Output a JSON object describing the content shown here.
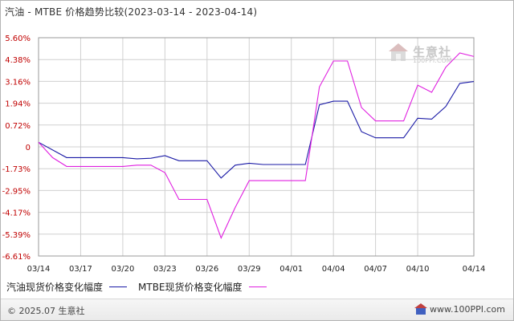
{
  "title": "汽油 - MTBE 价格趋势比较(2023-03-14 - 2023-04-14)",
  "watermark": {
    "text": "生意社",
    "sub": "100PPI.COM"
  },
  "footer": {
    "copyright": "© 2025.07 生意社",
    "url": "www.100PPI.com"
  },
  "colors": {
    "series1": "#1a1aa6",
    "series2": "#e020e0",
    "grid": "#d0d0d0",
    "tick_label": "#c00000"
  },
  "chart_data": {
    "type": "line",
    "title": "汽油 - MTBE 价格趋势比较(2023-03-14 - 2023-04-14)",
    "x_ticks": [
      "03/14",
      "03/17",
      "03/20",
      "03/23",
      "03/26",
      "03/29",
      "04/01",
      "04/04",
      "04/07",
      "04/10",
      "04/14"
    ],
    "y_ticks": [
      "5.60%",
      "4.38%",
      "3.16%",
      "1.94%",
      "0.72%",
      "0",
      "-1.73%",
      "-2.95%",
      "-4.17%",
      "-5.39%",
      "-6.61%"
    ],
    "ylim": [
      -6.61,
      5.6
    ],
    "grid": true,
    "legend_position": "bottom-left",
    "series": [
      {
        "name": "汽油现货价格变化幅度",
        "color": "#1a1aa6",
        "points": [
          [
            "03/14",
            0.15
          ],
          [
            "03/16",
            -0.85
          ],
          [
            "03/17",
            -0.85
          ],
          [
            "03/20",
            -0.85
          ],
          [
            "03/21",
            -0.95
          ],
          [
            "03/22",
            -0.9
          ],
          [
            "03/23",
            -0.7
          ],
          [
            "03/24",
            -1.1
          ],
          [
            "03/26",
            -1.1
          ],
          [
            "03/27",
            -2.25
          ],
          [
            "03/28",
            -1.45
          ],
          [
            "03/29",
            -1.3
          ],
          [
            "03/30",
            -1.4
          ],
          [
            "04/01",
            -1.4
          ],
          [
            "04/02",
            -1.4
          ],
          [
            "04/03",
            1.85
          ],
          [
            "04/04",
            2.05
          ],
          [
            "04/05",
            2.05
          ],
          [
            "04/06",
            0.5
          ],
          [
            "04/07",
            0.3
          ],
          [
            "04/09",
            0.3
          ],
          [
            "04/10",
            1.1
          ],
          [
            "04/11",
            1.05
          ],
          [
            "04/12",
            1.75
          ],
          [
            "04/13",
            3.05
          ],
          [
            "04/14",
            3.15
          ]
        ]
      },
      {
        "name": "MTBE现货价格变化幅度",
        "color": "#e020e0",
        "points": [
          [
            "03/14",
            0.15
          ],
          [
            "03/15",
            -0.85
          ],
          [
            "03/16",
            -1.55
          ],
          [
            "03/17",
            -1.55
          ],
          [
            "03/20",
            -1.55
          ],
          [
            "03/21",
            -1.45
          ],
          [
            "03/22",
            -1.45
          ],
          [
            "03/23",
            -1.95
          ],
          [
            "03/24",
            -3.45
          ],
          [
            "03/26",
            -3.45
          ],
          [
            "03/27",
            -5.6
          ],
          [
            "03/28",
            -3.9
          ],
          [
            "03/29",
            -2.4
          ],
          [
            "03/30",
            -2.4
          ],
          [
            "04/01",
            -2.4
          ],
          [
            "04/02",
            -2.4
          ],
          [
            "04/03",
            2.85
          ],
          [
            "04/04",
            4.3
          ],
          [
            "04/05",
            4.3
          ],
          [
            "04/06",
            1.7
          ],
          [
            "04/07",
            0.95
          ],
          [
            "04/09",
            0.95
          ],
          [
            "04/10",
            2.95
          ],
          [
            "04/11",
            2.55
          ],
          [
            "04/12",
            3.95
          ],
          [
            "04/13",
            4.75
          ],
          [
            "04/14",
            4.55
          ]
        ]
      }
    ]
  }
}
